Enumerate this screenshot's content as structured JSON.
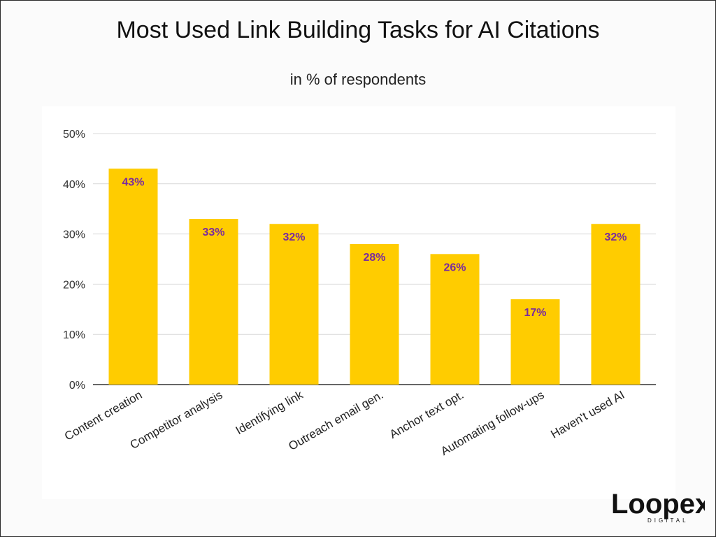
{
  "chart_data": {
    "type": "bar",
    "title": "Most Used Link Building Tasks for AI Citations",
    "subtitle": "in % of respondents",
    "xlabel": "",
    "ylabel": "",
    "categories": [
      "Content creation",
      "Competitor analysis",
      "Identifying link",
      "Outreach email gen.",
      "Anchor text opt.",
      "Automating follow-ups",
      "Haven't used AI"
    ],
    "values": [
      43,
      33,
      32,
      28,
      26,
      17,
      32
    ],
    "data_labels": [
      "43%",
      "33%",
      "32%",
      "28%",
      "26%",
      "17%",
      "32%"
    ],
    "ylim": [
      0,
      50
    ],
    "yticks": [
      0,
      10,
      20,
      30,
      40,
      50
    ],
    "ytick_labels": [
      "0%",
      "10%",
      "20%",
      "30%",
      "40%",
      "50%"
    ],
    "grid": true,
    "legend": "none",
    "colors": {
      "bar": "#ffcc00",
      "data_label": "#7a2a9e",
      "grid": "#d9d9d9",
      "axis": "#333333"
    }
  },
  "brand": {
    "logo_text": "Loopex",
    "logo_subtext": "DIGITAL"
  }
}
